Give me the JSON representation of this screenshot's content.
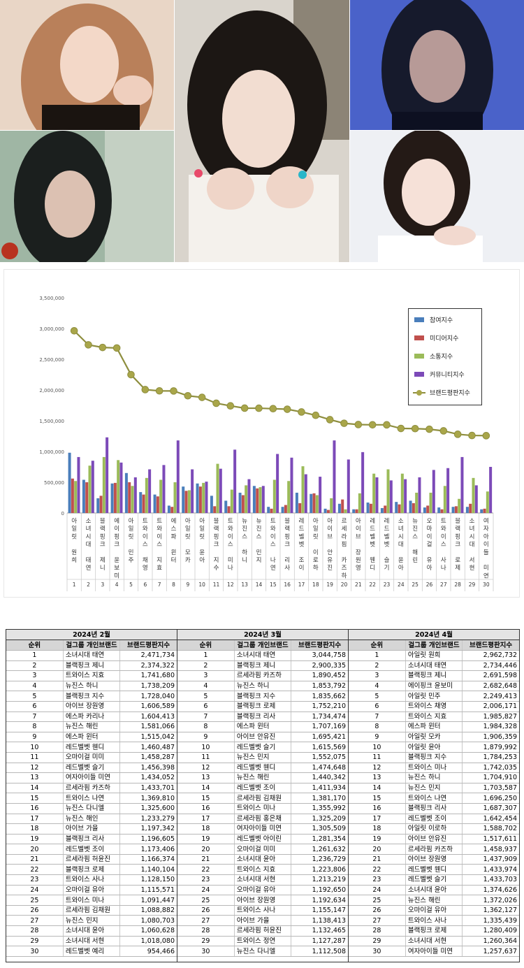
{
  "chart_data": {
    "type": "bar",
    "y_ticks": [
      "3,500,000",
      "3,000,000",
      "2,500,000",
      "2,000,000",
      "1,500,000",
      "1,000,000",
      "500,000",
      "0"
    ],
    "ylim": [
      0,
      3500000
    ],
    "categories": [
      "아일릿 원희",
      "소녀시대 태연",
      "블랙핑크 제니",
      "에이핑크 윤보미",
      "아일릿 민주",
      "트와이스 채영",
      "트와이스 지효",
      "에스파 윈터",
      "아일릿 모카",
      "아일릿 윤아",
      "블랙핑크 지수",
      "트와이스 미나",
      "뉴진스 하니",
      "뉴진스 민지",
      "트와이스 나연",
      "블랙핑크 리사",
      "레드벨벳 조이",
      "아일릿 이로하",
      "아이브 안유진",
      "르세라핌 카즈하",
      "아이브 장원영",
      "레드벨벳 웬디",
      "레드벨벳 슬기",
      "소녀시대 윤아",
      "뉴진스 해린",
      "오마이걸 유아",
      "트와이스 사나",
      "블랙핑크 로제",
      "소녀시대 서현",
      "여자아이들 미연"
    ],
    "ranks": [
      "1",
      "2",
      "3",
      "4",
      "5",
      "6",
      "7",
      "8",
      "9",
      "10",
      "11",
      "12",
      "13",
      "14",
      "15",
      "16",
      "17",
      "18",
      "19",
      "20",
      "21",
      "22",
      "23",
      "24",
      "25",
      "26",
      "27",
      "28",
      "29",
      "30"
    ],
    "legend_position": "top-right",
    "series": [
      {
        "name": "참여지수",
        "color": "#4a7ebb",
        "values": [
          980000,
          540000,
          240000,
          480000,
          650000,
          340000,
          300000,
          120000,
          430000,
          480000,
          280000,
          200000,
          330000,
          440000,
          100000,
          100000,
          330000,
          310000,
          70000,
          150000,
          60000,
          170000,
          80000,
          180000,
          200000,
          90000,
          90000,
          100000,
          100000,
          60000
        ]
      },
      {
        "name": "미디어지수",
        "color": "#c0504d",
        "values": [
          560000,
          500000,
          280000,
          490000,
          500000,
          300000,
          270000,
          100000,
          360000,
          430000,
          110000,
          110000,
          290000,
          400000,
          70000,
          130000,
          160000,
          320000,
          50000,
          220000,
          60000,
          150000,
          120000,
          140000,
          160000,
          120000,
          60000,
          110000,
          150000,
          70000
        ]
      },
      {
        "name": "소통지수",
        "color": "#9bbb59",
        "values": [
          520000,
          770000,
          910000,
          860000,
          440000,
          570000,
          540000,
          500000,
          370000,
          490000,
          800000,
          380000,
          450000,
          420000,
          540000,
          520000,
          760000,
          290000,
          240000,
          60000,
          320000,
          640000,
          710000,
          640000,
          330000,
          330000,
          440000,
          230000,
          570000,
          350000
        ]
      },
      {
        "name": "커뮤니티지수",
        "color": "#7c4ab8",
        "values": [
          910000,
          850000,
          1230000,
          820000,
          580000,
          710000,
          780000,
          1180000,
          710000,
          510000,
          720000,
          1030000,
          550000,
          440000,
          960000,
          900000,
          630000,
          590000,
          1180000,
          870000,
          990000,
          580000,
          530000,
          550000,
          580000,
          700000,
          730000,
          910000,
          450000,
          750000
        ]
      },
      {
        "name": "브랜드평판지수",
        "color": "#a9a64a",
        "type": "line",
        "values": [
          2962732,
          2734446,
          2691598,
          2682648,
          2249413,
          2006171,
          1985827,
          1984328,
          1906359,
          1879992,
          1784253,
          1742035,
          1704910,
          1703587,
          1696250,
          1687307,
          1642454,
          1588702,
          1517611,
          1458937,
          1437909,
          1433974,
          1433703,
          1374626,
          1372026,
          1362127,
          1335439,
          1280409,
          1260364,
          1257637
        ]
      }
    ]
  },
  "tables": [
    {
      "month": "2024년 2월",
      "headers": [
        "순위",
        "걸그룹 개인브랜드",
        "브랜드평판지수"
      ],
      "rows": [
        [
          "1",
          "소녀시대 태연",
          "2,471,734"
        ],
        [
          "2",
          "블랙핑크 제니",
          "2,374,322"
        ],
        [
          "3",
          "트와이스 지효",
          "1,741,680"
        ],
        [
          "4",
          "뉴진스 하니",
          "1,738,209"
        ],
        [
          "5",
          "블랙핑크 지수",
          "1,728,040"
        ],
        [
          "6",
          "아이브 장원영",
          "1,606,589"
        ],
        [
          "7",
          "에스파 카리나",
          "1,604,413"
        ],
        [
          "8",
          "뉴진스 해린",
          "1,581,066"
        ],
        [
          "9",
          "에스파 윈터",
          "1,515,042"
        ],
        [
          "10",
          "레드벨벳 웬디",
          "1,460,487"
        ],
        [
          "11",
          "오마이걸 미미",
          "1,458,287"
        ],
        [
          "12",
          "레드벨벳 슬기",
          "1,456,398"
        ],
        [
          "13",
          "여자아이들 미연",
          "1,434,052"
        ],
        [
          "14",
          "르세라핌 카즈하",
          "1,433,701"
        ],
        [
          "15",
          "트와이스 나연",
          "1,369,810"
        ],
        [
          "16",
          "뉴진스 다니엘",
          "1,325,600"
        ],
        [
          "17",
          "뉴진스 해인",
          "1,233,279"
        ],
        [
          "18",
          "아이브 가을",
          "1,197,342"
        ],
        [
          "19",
          "블랙핑크 리사",
          "1,196,605"
        ],
        [
          "20",
          "레드벨벳 조이",
          "1,173,406"
        ],
        [
          "21",
          "르세라핌 허윤진",
          "1,166,374"
        ],
        [
          "22",
          "블랙핑크 로제",
          "1,140,104"
        ],
        [
          "23",
          "트와이스 사나",
          "1,128,150"
        ],
        [
          "24",
          "오마이걸 유아",
          "1,115,571"
        ],
        [
          "25",
          "트와이스 미나",
          "1,091,447"
        ],
        [
          "26",
          "르세라핌 김채원",
          "1,088,882"
        ],
        [
          "27",
          "뉴진스 민지",
          "1,080,703"
        ],
        [
          "28",
          "소녀시대 윤아",
          "1,060,628"
        ],
        [
          "29",
          "소녀시대 서현",
          "1,018,080"
        ],
        [
          "30",
          "레드벨벳 예리",
          "954,466"
        ]
      ]
    },
    {
      "month": "2024년 3월",
      "headers": [
        "순위",
        "걸그룹 개인브랜드",
        "브랜드평판지수"
      ],
      "rows": [
        [
          "1",
          "소녀시대 태연",
          "3,044,758"
        ],
        [
          "2",
          "블랙핑크 제니",
          "2,900,335"
        ],
        [
          "3",
          "르세라핌 카즈하",
          "1,890,452"
        ],
        [
          "4",
          "뉴진스 하니",
          "1,853,792"
        ],
        [
          "5",
          "블랙핑크 지수",
          "1,835,662"
        ],
        [
          "6",
          "블랙핑크 로제",
          "1,752,210"
        ],
        [
          "7",
          "블랙핑크 리사",
          "1,734,474"
        ],
        [
          "8",
          "에스파 윈터",
          "1,707,169"
        ],
        [
          "9",
          "아이브 안유진",
          "1,695,421"
        ],
        [
          "10",
          "레드벨벳 슬기",
          "1,615,569"
        ],
        [
          "11",
          "뉴진스 민지",
          "1,552,075"
        ],
        [
          "12",
          "레드벨벳 웬디",
          "1,474,648"
        ],
        [
          "13",
          "뉴진스 해린",
          "1,440,342"
        ],
        [
          "14",
          "레드벨벳 조이",
          "1,411,934"
        ],
        [
          "15",
          "르세라핌 김채원",
          "1,381,170"
        ],
        [
          "16",
          "트와이스 미나",
          "1,355,992"
        ],
        [
          "17",
          "르세라핌 홍은채",
          "1,325,209"
        ],
        [
          "18",
          "여자아이들 미연",
          "1,305,509"
        ],
        [
          "19",
          "레드벨벳 아이린",
          "1,281,354"
        ],
        [
          "20",
          "오마이걸 미미",
          "1,261,632"
        ],
        [
          "21",
          "소녀시대 윤아",
          "1,236,729"
        ],
        [
          "22",
          "트와이스 지효",
          "1,223,806"
        ],
        [
          "23",
          "소녀시대 서현",
          "1,213,219"
        ],
        [
          "24",
          "오마이걸 유아",
          "1,192,650"
        ],
        [
          "25",
          "아이브 장원영",
          "1,192,634"
        ],
        [
          "26",
          "트와이스 사나",
          "1,155,147"
        ],
        [
          "27",
          "아이브 가을",
          "1,138,413"
        ],
        [
          "28",
          "르세라핌 허윤진",
          "1,132,465"
        ],
        [
          "29",
          "트와이스 정연",
          "1,127,287"
        ],
        [
          "30",
          "뉴진스 다니엘",
          "1,112,508"
        ]
      ]
    },
    {
      "month": "2024년 4월",
      "headers": [
        "순위",
        "걸그룹 개인브랜드",
        "브랜드평판지수"
      ],
      "rows": [
        [
          "1",
          "아일릿 원희",
          "2,962,732"
        ],
        [
          "2",
          "소녀시대 태연",
          "2,734,446"
        ],
        [
          "3",
          "블랙핑크 제니",
          "2,691,598"
        ],
        [
          "4",
          "에이핑크 윤보미",
          "2,682,648"
        ],
        [
          "5",
          "아일릿 민주",
          "2,249,413"
        ],
        [
          "6",
          "트와이스 채영",
          "2,006,171"
        ],
        [
          "7",
          "트와이스 지효",
          "1,985,827"
        ],
        [
          "8",
          "에스파 윈터",
          "1,984,328"
        ],
        [
          "9",
          "아일릿 모카",
          "1,906,359"
        ],
        [
          "10",
          "아일릿 윤아",
          "1,879,992"
        ],
        [
          "11",
          "블랙핑크 지수",
          "1,784,253"
        ],
        [
          "12",
          "트와이스 미나",
          "1,742,035"
        ],
        [
          "13",
          "뉴진스 하니",
          "1,704,910"
        ],
        [
          "14",
          "뉴진스 민지",
          "1,703,587"
        ],
        [
          "15",
          "트와이스 나연",
          "1,696,250"
        ],
        [
          "16",
          "블랙핑크 리사",
          "1,687,307"
        ],
        [
          "17",
          "레드벨벳 조이",
          "1,642,454"
        ],
        [
          "18",
          "아일릿 이로하",
          "1,588,702"
        ],
        [
          "19",
          "아이브 안유진",
          "1,517,611"
        ],
        [
          "20",
          "르세라핌 카즈하",
          "1,458,937"
        ],
        [
          "21",
          "아이브 장원영",
          "1,437,909"
        ],
        [
          "22",
          "레드벨벳 웬디",
          "1,433,974"
        ],
        [
          "23",
          "레드벨벳 슬기",
          "1,433,703"
        ],
        [
          "24",
          "소녀시대 윤아",
          "1,374,626"
        ],
        [
          "25",
          "뉴진스 해린",
          "1,372,026"
        ],
        [
          "26",
          "오마이걸 유아",
          "1,362,127"
        ],
        [
          "27",
          "트와이스 사나",
          "1,335,439"
        ],
        [
          "28",
          "블랙핑크 로제",
          "1,280,409"
        ],
        [
          "29",
          "소녀시대 서현",
          "1,260,364"
        ],
        [
          "30",
          "여자아이들 미연",
          "1,257,637"
        ]
      ]
    }
  ]
}
